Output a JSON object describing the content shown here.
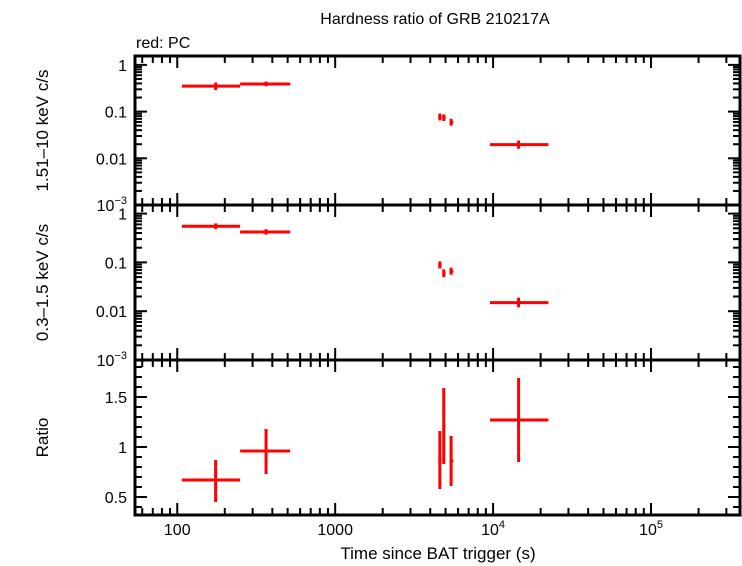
{
  "chart_data": {
    "type": "scatter",
    "title": "Hardness ratio of GRB 210217A",
    "legend_note": "red: PC",
    "xlabel": "Time since BAT trigger (s)",
    "xscale": "log",
    "xlim": [
      54,
      366000
    ],
    "x_ticks": [
      {
        "v": 100,
        "label": "100"
      },
      {
        "v": 1000,
        "label": "1000"
      },
      {
        "v": 10000,
        "label": "10",
        "sup": "4"
      },
      {
        "v": 100000,
        "label": "10",
        "sup": "5"
      }
    ],
    "series_color": "#ff0000",
    "x": [
      175,
      365,
      4600,
      4870,
      5420,
      14500
    ],
    "x_err_low": [
      107,
      250,
      4500,
      4780,
      5300,
      9550
    ],
    "x_err_high": [
      250,
      519,
      4720,
      5000,
      5600,
      22400
    ],
    "panels": [
      {
        "ylabel": "1.51–10 keV c/s",
        "yscale": "log",
        "ylim": [
          0.001,
          1.55
        ],
        "y_ticks": [
          {
            "v": 1,
            "label": "1"
          },
          {
            "v": 0.1,
            "label": "0.1"
          },
          {
            "v": 0.01,
            "label": "0.01"
          },
          {
            "v": 0.001,
            "label": "10",
            "sup": "−3"
          }
        ],
        "y": [
          0.35,
          0.39,
          0.077,
          0.074,
          0.059
        ],
        "y_last": 0.0196,
        "y_err_low": [
          0.29,
          0.35,
          0.065,
          0.063,
          0.05,
          0.016
        ],
        "y_err_high": [
          0.42,
          0.44,
          0.091,
          0.087,
          0.07,
          0.024
        ]
      },
      {
        "ylabel": "0.3–1.5 keV c/s",
        "yscale": "log",
        "ylim": [
          0.001,
          1.5
        ],
        "y_ticks": [
          {
            "v": 1,
            "label": "1"
          },
          {
            "v": 0.1,
            "label": "0.1"
          },
          {
            "v": 0.01,
            "label": "0.01"
          },
          {
            "v": 0.001,
            "label": "10",
            "sup": "−3"
          }
        ],
        "y": [
          0.55,
          0.42,
          0.089,
          0.06,
          0.066
        ],
        "y_last": 0.015,
        "y_err_low": [
          0.48,
          0.37,
          0.075,
          0.05,
          0.056,
          0.012
        ],
        "y_err_high": [
          0.63,
          0.48,
          0.105,
          0.072,
          0.078,
          0.019
        ]
      },
      {
        "ylabel": "Ratio",
        "yscale": "linear",
        "ylim": [
          0.32,
          1.87
        ],
        "y_ticks": [
          {
            "v": 1.5,
            "label": "1.5"
          },
          {
            "v": 1,
            "label": "1"
          },
          {
            "v": 0.5,
            "label": "0.5"
          }
        ],
        "y": [
          0.67,
          0.96,
          0.87,
          1.21,
          0.86
        ],
        "y_last": 1.27,
        "y_err_low": [
          0.45,
          0.73,
          0.58,
          0.83,
          0.61,
          0.85
        ],
        "y_err_high": [
          0.87,
          1.18,
          1.16,
          1.59,
          1.11,
          1.69
        ]
      }
    ]
  }
}
